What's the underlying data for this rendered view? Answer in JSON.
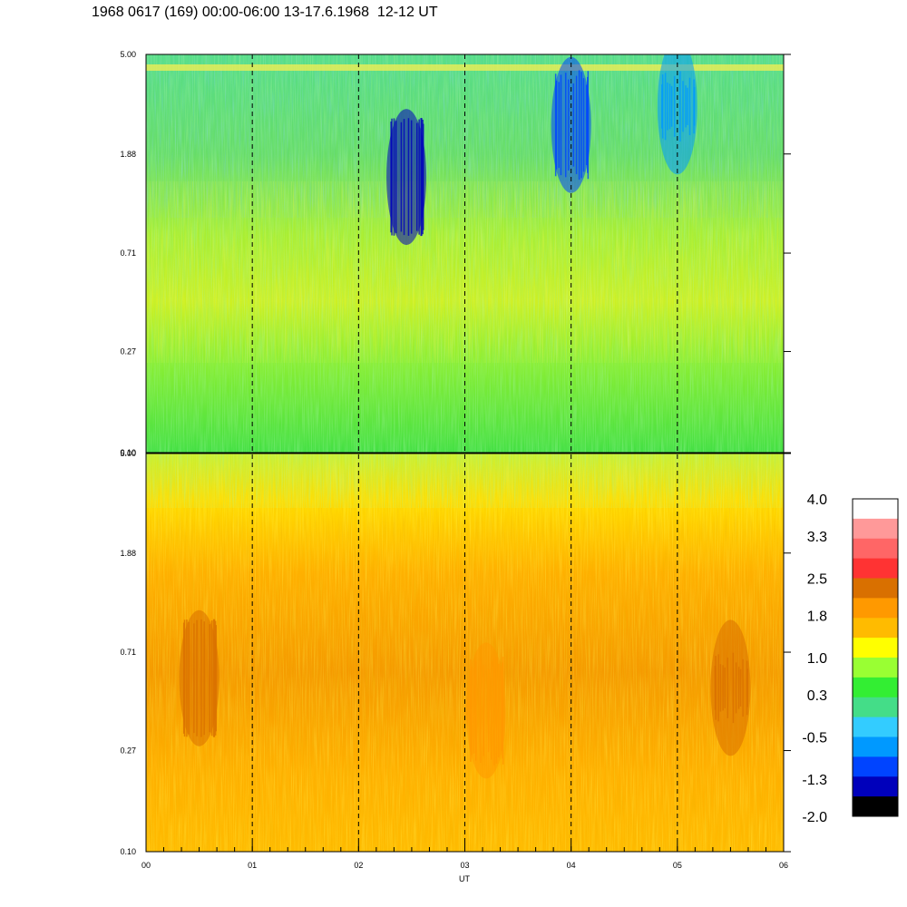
{
  "title": "1968 0617 (169) 00:00-06:00 13-17.6.1968  12-12 UT",
  "chart_data": {
    "type": "heatmap",
    "x_label": "UT",
    "x_ticks": [
      "00",
      "01",
      "02",
      "03",
      "04",
      "05",
      "06"
    ],
    "x_range": [
      0,
      6
    ],
    "y_ticks": [
      "0.10",
      "0.27",
      "0.71",
      "1.88",
      "5.00"
    ],
    "y_range": [
      0.1,
      5.0
    ],
    "y_scale": "log",
    "dashed_verticals_at": [
      1,
      2,
      3,
      4,
      5
    ],
    "panels": [
      {
        "name": "top",
        "dominant_level_range": [
          -1.3,
          1.8
        ],
        "features": [
          {
            "x": 2.45,
            "y": 1.5,
            "level": -1.3
          },
          {
            "x": 4.0,
            "y": 2.5,
            "level": -1.0
          },
          {
            "x": 5.0,
            "y": 3.0,
            "level": -0.8
          }
        ]
      },
      {
        "name": "bottom",
        "dominant_level_range": [
          1.0,
          2.3
        ],
        "features": [
          {
            "x": 0.5,
            "y": 0.55,
            "level": 2.2
          },
          {
            "x": 3.2,
            "y": 0.4,
            "level": 2.1
          },
          {
            "x": 5.5,
            "y": 0.5,
            "level": 2.2
          }
        ]
      }
    ],
    "colorbar": {
      "labels": [
        "4.0",
        "3.3",
        "2.5",
        "1.8",
        "1.0",
        "0.3",
        "-0.5",
        "-1.3",
        "-2.0"
      ],
      "range": [
        -2.0,
        4.0
      ],
      "colors": [
        "#ffffff",
        "#ff9999",
        "#ff6666",
        "#ff3333",
        "#d97000",
        "#ff9900",
        "#ffbb00",
        "#ffff00",
        "#99ff33",
        "#33ee33",
        "#44dd88",
        "#33ccff",
        "#0099ff",
        "#0044ff",
        "#0000bb",
        "#000000"
      ]
    }
  }
}
